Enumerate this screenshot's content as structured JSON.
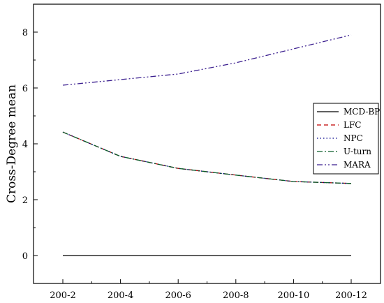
{
  "chart_data": {
    "type": "line",
    "title": "",
    "xlabel": "",
    "ylabel": "Cross-Degree mean",
    "categories": [
      "200-2",
      "200-4",
      "200-6",
      "200-8",
      "200-10",
      "200-12"
    ],
    "ylim": [
      -1,
      9
    ],
    "yticks": [
      0,
      2,
      4,
      6,
      8
    ],
    "grid": false,
    "legend_position": "right",
    "series": [
      {
        "name": "MCD-BP",
        "values": [
          0,
          0,
          0,
          0,
          0,
          0
        ],
        "color": "#000000",
        "dash": "solid"
      },
      {
        "name": "LFC",
        "values": [
          4.42,
          3.55,
          3.12,
          2.88,
          2.65,
          2.58
        ],
        "color": "#c00000",
        "dash": "dash"
      },
      {
        "name": "NPC",
        "values": [
          4.42,
          3.55,
          3.12,
          2.88,
          2.65,
          2.58
        ],
        "color": "#00008b",
        "dash": "dot"
      },
      {
        "name": "U-turn",
        "values": [
          4.42,
          3.55,
          3.12,
          2.88,
          2.65,
          2.58
        ],
        "color": "#0b5e2b",
        "dash": "dashdot"
      },
      {
        "name": "MARA",
        "values": [
          6.1,
          6.3,
          6.5,
          6.9,
          7.4,
          7.9
        ],
        "color": "#3b1f8f",
        "dash": "dashdotdot"
      }
    ]
  }
}
